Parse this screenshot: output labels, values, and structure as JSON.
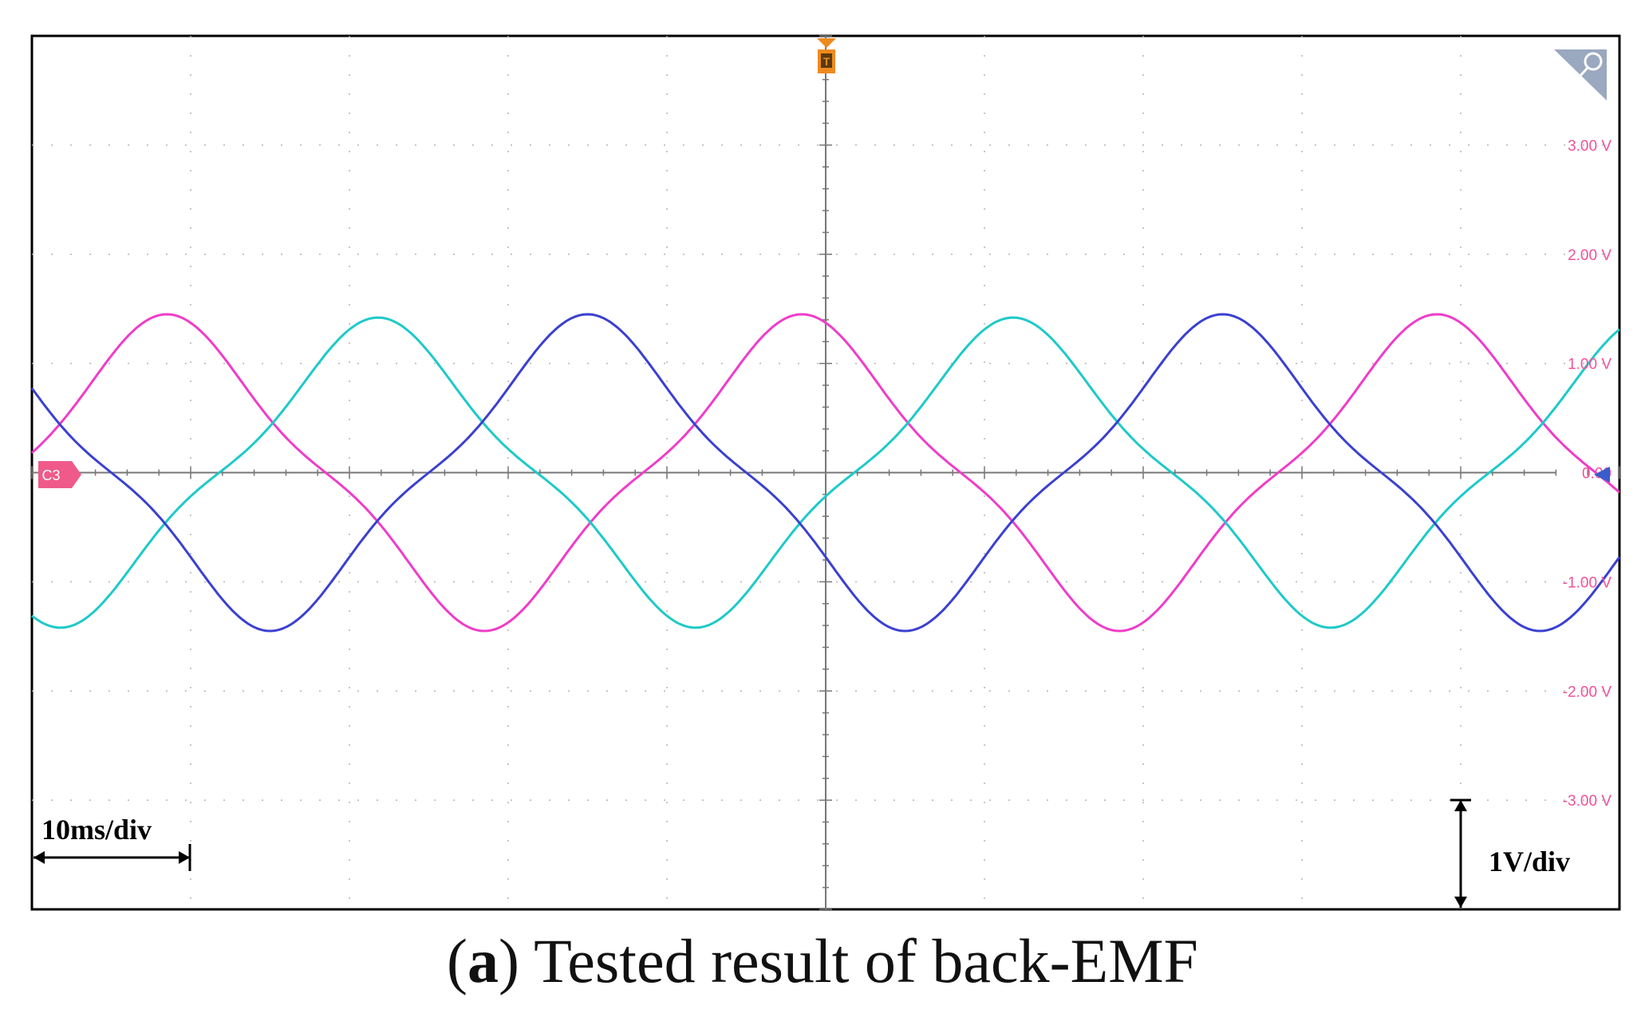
{
  "caption": {
    "letter": "a",
    "text": " Tested result of back-EMF"
  },
  "scope": {
    "channel_marker": "C3",
    "trigger_marker": "T",
    "time_scale_label": "10ms/div",
    "volt_scale_label": "1V/div",
    "colors": {
      "frame": "#000000",
      "grid": "#aaaaaa",
      "axis": "#777777",
      "labels": "#f0509a",
      "marker": "#ef5a8a",
      "trigger": "#f08a1e",
      "ref_arrow": "#3a5ccc"
    }
  },
  "chart_data": {
    "type": "line",
    "title": "",
    "xlabel": "",
    "ylabel": "",
    "xlim": [
      -50,
      50
    ],
    "ylim": [
      -4,
      4
    ],
    "grid": true,
    "yticks": [
      {
        "v": 3,
        "label": "3.00 V"
      },
      {
        "v": 2,
        "label": "2.00 V"
      },
      {
        "v": 1,
        "label": "1.00 V"
      },
      {
        "v": 0,
        "label": "0.00"
      },
      {
        "v": -1,
        "label": "-1.00 V"
      },
      {
        "v": -2,
        "label": "-2.00 V"
      },
      {
        "v": -3,
        "label": "-3.00 V"
      }
    ],
    "series": [
      {
        "color": "#f03cc8",
        "amplitude": 1.45,
        "period_ms": 40,
        "peak_ms": -41.5
      },
      {
        "color": "#1fc9c9",
        "amplitude": 1.42,
        "period_ms": 40,
        "peak_ms": -28.2
      },
      {
        "color": "#3a40d0",
        "amplitude": 1.45,
        "period_ms": 40,
        "peak_ms": -15.0
      }
    ]
  }
}
